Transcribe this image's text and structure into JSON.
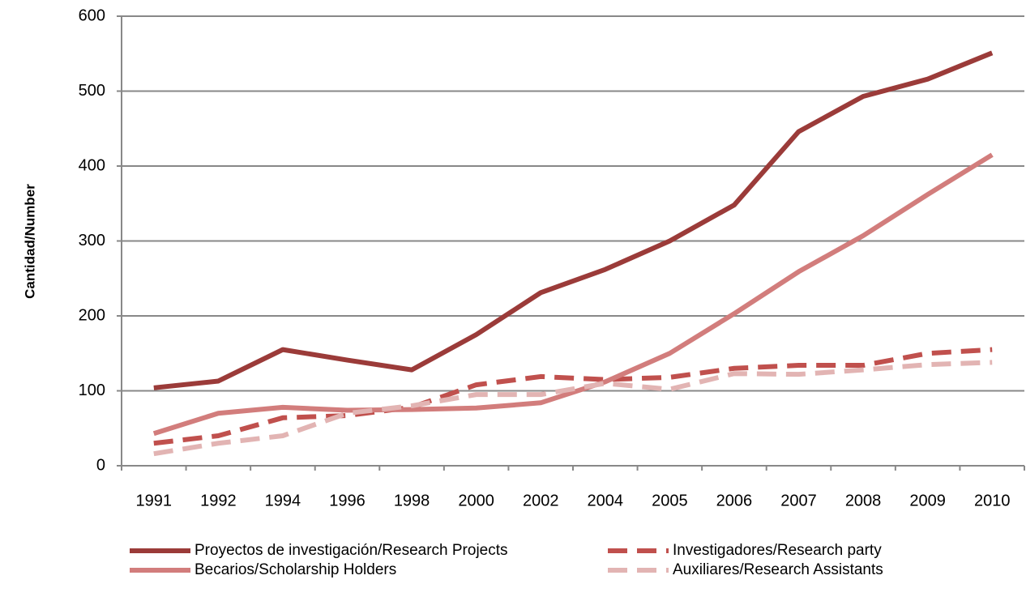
{
  "chart_data": {
    "type": "line",
    "y_label": "Cantidad/Number",
    "categories": [
      "1991",
      "1992",
      "1994",
      "1996",
      "1998",
      "2000",
      "2002",
      "2004",
      "2005",
      "2006",
      "2007",
      "2008",
      "2009",
      "2010"
    ],
    "series": [
      {
        "name": "Proyectos de investigación/Research Projects",
        "color": "#9b3b39",
        "dashed": false,
        "values": [
          104,
          113,
          155,
          141,
          128,
          175,
          231,
          262,
          300,
          348,
          446,
          493,
          516,
          551
        ]
      },
      {
        "name": "Investigadores/Research party",
        "color": "#c0504d",
        "dashed": true,
        "values": [
          30,
          40,
          64,
          67,
          78,
          108,
          119,
          115,
          118,
          130,
          134,
          134,
          150,
          155
        ]
      },
      {
        "name": "Becarios/Scholarship Holders",
        "color": "#d27d7c",
        "dashed": false,
        "values": [
          43,
          70,
          78,
          74,
          75,
          77,
          84,
          112,
          150,
          203,
          259,
          307,
          362,
          415
        ]
      },
      {
        "name": "Auxiliares/Research Assistants",
        "color": "#e2b4b3",
        "dashed": true,
        "values": [
          16,
          30,
          40,
          70,
          80,
          95,
          95,
          110,
          102,
          123,
          122,
          128,
          135,
          138
        ]
      }
    ],
    "ylim": [
      0,
      600
    ],
    "yticks": [
      0,
      100,
      200,
      300,
      400,
      500,
      600
    ],
    "grid": true
  }
}
